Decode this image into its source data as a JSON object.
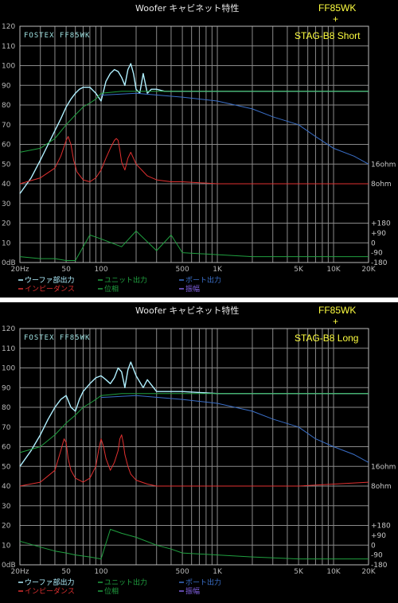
{
  "chart_data": [
    {
      "type": "line",
      "title": "Woofer キャビネット特性",
      "model_line1": "FF85WK",
      "model_plus": "+",
      "model_line2": "STAG-B8  Short",
      "brand_label": "FOSTEX FF85WK",
      "xscale": "log",
      "xlim": [
        20,
        20000
      ],
      "ylim": [
        0,
        120
      ],
      "grid": true,
      "legend": "bottom",
      "x_ticks": [
        {
          "v": 20,
          "label": "20Hz"
        },
        {
          "v": 50,
          "label": "50"
        },
        {
          "v": 100,
          "label": "100"
        },
        {
          "v": 500,
          "label": "500"
        },
        {
          "v": 1000,
          "label": "1K"
        },
        {
          "v": 5000,
          "label": "5K"
        },
        {
          "v": 10000,
          "label": "10K"
        },
        {
          "v": 20000,
          "label": "20K"
        }
      ],
      "y_ticks": [
        "0dB",
        "10",
        "20",
        "30",
        "40",
        "50",
        "60",
        "70",
        "80",
        "90",
        "100",
        "110",
        "120"
      ],
      "right_labels": [
        {
          "y": 50,
          "label": "16ohm"
        },
        {
          "y": 40,
          "label": "8ohm"
        },
        {
          "y": 20,
          "label": "+180"
        },
        {
          "y": 15,
          "label": "+90"
        },
        {
          "y": 10,
          "label": "0"
        },
        {
          "y": 5,
          "label": "-90"
        },
        {
          "y": 0,
          "label": "-180"
        }
      ],
      "legend_items": [
        {
          "label": "ウーファ部出力",
          "color": "#b0f0ff"
        },
        {
          "label": "ユニット出力",
          "color": "#20a040"
        },
        {
          "label": "ポート出力",
          "color": "#3a6fc8"
        },
        {
          "label": "インピーダンス",
          "color": "#e03030"
        },
        {
          "label": "位相",
          "color": "#20a040"
        },
        {
          "label": "振幅",
          "color": "#8060e0"
        }
      ],
      "series": [
        {
          "color": "#b0f0ff",
          "x": [
            20,
            25,
            30,
            35,
            40,
            45,
            50,
            55,
            60,
            65,
            70,
            75,
            80,
            90,
            100,
            110,
            120,
            130,
            140,
            150,
            160,
            170,
            180,
            190,
            200,
            215,
            230,
            250,
            270,
            300,
            350,
            400,
            500,
            700,
            1000,
            2000,
            5000,
            10000,
            20000
          ],
          "y": [
            35,
            43,
            52,
            60,
            67,
            73,
            79,
            83,
            86,
            88,
            89,
            89,
            89,
            86,
            82,
            92,
            96,
            98,
            97,
            94,
            90,
            98,
            101,
            96,
            88,
            86,
            96,
            86,
            88,
            88,
            87,
            87,
            87,
            87,
            87,
            87,
            87,
            87,
            87
          ]
        },
        {
          "color": "#3a6fc8",
          "x": [
            100,
            200,
            500,
            1000,
            2000,
            3000,
            5000,
            7000,
            10000,
            15000,
            20000
          ],
          "y": [
            85,
            86,
            84,
            82,
            78,
            74,
            70,
            64,
            58,
            54,
            50
          ]
        },
        {
          "color": "#20a040",
          "x": [
            20,
            30,
            40,
            50,
            60,
            70,
            80,
            90,
            100,
            150,
            200,
            300,
            500,
            1000,
            5000,
            20000
          ],
          "y": [
            56,
            58,
            63,
            70,
            75,
            79,
            81,
            83,
            86,
            87,
            87,
            87,
            87,
            87,
            87,
            87
          ]
        },
        {
          "color": "#e03030",
          "x": [
            20,
            30,
            40,
            45,
            50,
            52,
            55,
            58,
            62,
            70,
            80,
            90,
            100,
            110,
            120,
            130,
            135,
            140,
            145,
            150,
            160,
            170,
            180,
            200,
            250,
            300,
            400,
            500,
            1000,
            5000,
            10000,
            20000
          ],
          "y": [
            40,
            43,
            48,
            54,
            62,
            64,
            60,
            52,
            46,
            42,
            41,
            43,
            47,
            53,
            58,
            62,
            63,
            62,
            57,
            51,
            47,
            53,
            56,
            50,
            44,
            42,
            41,
            41,
            40,
            40,
            40,
            40
          ]
        },
        {
          "color": "#20a040",
          "x": [
            20,
            30,
            40,
            50,
            60,
            80,
            100,
            150,
            200,
            300,
            400,
            500,
            1000,
            2000,
            5000,
            20000
          ],
          "y": [
            3,
            2,
            2,
            1,
            1,
            14,
            12,
            8,
            16,
            6,
            14,
            5,
            4,
            3,
            3,
            3
          ]
        }
      ]
    },
    {
      "type": "line",
      "title": "Woofer キャビネット特性",
      "model_line1": "FF85WK",
      "model_plus": "+",
      "model_line2": "STAG-B8  Long",
      "brand_label": "FOSTEX FF85WK",
      "xscale": "log",
      "xlim": [
        20,
        20000
      ],
      "ylim": [
        0,
        120
      ],
      "grid": true,
      "legend": "bottom",
      "x_ticks": [
        {
          "v": 20,
          "label": "20Hz"
        },
        {
          "v": 50,
          "label": "50"
        },
        {
          "v": 100,
          "label": "100"
        },
        {
          "v": 500,
          "label": "500"
        },
        {
          "v": 1000,
          "label": "1K"
        },
        {
          "v": 5000,
          "label": "5K"
        },
        {
          "v": 10000,
          "label": "10K"
        },
        {
          "v": 20000,
          "label": "20K"
        }
      ],
      "y_ticks": [
        "0dB",
        "10",
        "20",
        "30",
        "40",
        "50",
        "60",
        "70",
        "80",
        "90",
        "100",
        "110",
        "120"
      ],
      "right_labels": [
        {
          "y": 50,
          "label": "16ohm"
        },
        {
          "y": 40,
          "label": "8ohm"
        },
        {
          "y": 20,
          "label": "+180"
        },
        {
          "y": 15,
          "label": "+90"
        },
        {
          "y": 10,
          "label": "0"
        },
        {
          "y": 5,
          "label": "-90"
        },
        {
          "y": 0,
          "label": "-180"
        }
      ],
      "legend_items": [
        {
          "label": "ウーファ部出力",
          "color": "#b0f0ff"
        },
        {
          "label": "ユニット出力",
          "color": "#20a040"
        },
        {
          "label": "ポート出力",
          "color": "#3a6fc8"
        },
        {
          "label": "インピーダンス",
          "color": "#e03030"
        },
        {
          "label": "位相",
          "color": "#20a040"
        },
        {
          "label": "振幅",
          "color": "#8060e0"
        }
      ],
      "series": [
        {
          "color": "#b0f0ff",
          "x": [
            20,
            25,
            30,
            35,
            40,
            45,
            50,
            55,
            60,
            65,
            70,
            80,
            90,
            100,
            110,
            120,
            130,
            140,
            150,
            160,
            170,
            180,
            200,
            230,
            250,
            300,
            500,
            1000,
            2000,
            5000,
            10000,
            20000
          ],
          "y": [
            50,
            58,
            66,
            74,
            80,
            84,
            86,
            80,
            78,
            84,
            88,
            92,
            95,
            96,
            94,
            92,
            95,
            100,
            98,
            90,
            99,
            103,
            96,
            90,
            94,
            88,
            88,
            87,
            87,
            87,
            87,
            87
          ]
        },
        {
          "color": "#3a6fc8",
          "x": [
            100,
            200,
            500,
            1000,
            2000,
            3000,
            5000,
            7000,
            10000,
            15000,
            20000
          ],
          "y": [
            85,
            86,
            84,
            82,
            78,
            74,
            70,
            64,
            60,
            56,
            52
          ]
        },
        {
          "color": "#20a040",
          "x": [
            20,
            30,
            40,
            50,
            60,
            70,
            80,
            90,
            100,
            150,
            200,
            300,
            500,
            1000,
            5000,
            20000
          ],
          "y": [
            57,
            60,
            66,
            72,
            76,
            80,
            82,
            84,
            86,
            87,
            87,
            87,
            87,
            87,
            87,
            87
          ]
        },
        {
          "color": "#e03030",
          "x": [
            20,
            30,
            40,
            45,
            48,
            50,
            52,
            55,
            60,
            70,
            80,
            90,
            95,
            100,
            105,
            110,
            120,
            130,
            140,
            145,
            150,
            155,
            160,
            170,
            180,
            200,
            250,
            300,
            500,
            1000,
            5000,
            20000
          ],
          "y": [
            40,
            42,
            48,
            58,
            64,
            62,
            54,
            48,
            44,
            42,
            44,
            50,
            58,
            64,
            60,
            54,
            48,
            52,
            58,
            64,
            66,
            62,
            56,
            50,
            46,
            43,
            41,
            40,
            40,
            40,
            40,
            42
          ]
        },
        {
          "color": "#20a040",
          "x": [
            20,
            30,
            40,
            50,
            60,
            80,
            100,
            120,
            150,
            200,
            300,
            400,
            500,
            1000,
            2000,
            5000,
            20000
          ],
          "y": [
            12,
            9,
            7,
            6,
            5,
            4,
            3,
            18,
            16,
            14,
            10,
            8,
            6,
            5,
            4,
            3,
            3
          ]
        }
      ]
    }
  ]
}
